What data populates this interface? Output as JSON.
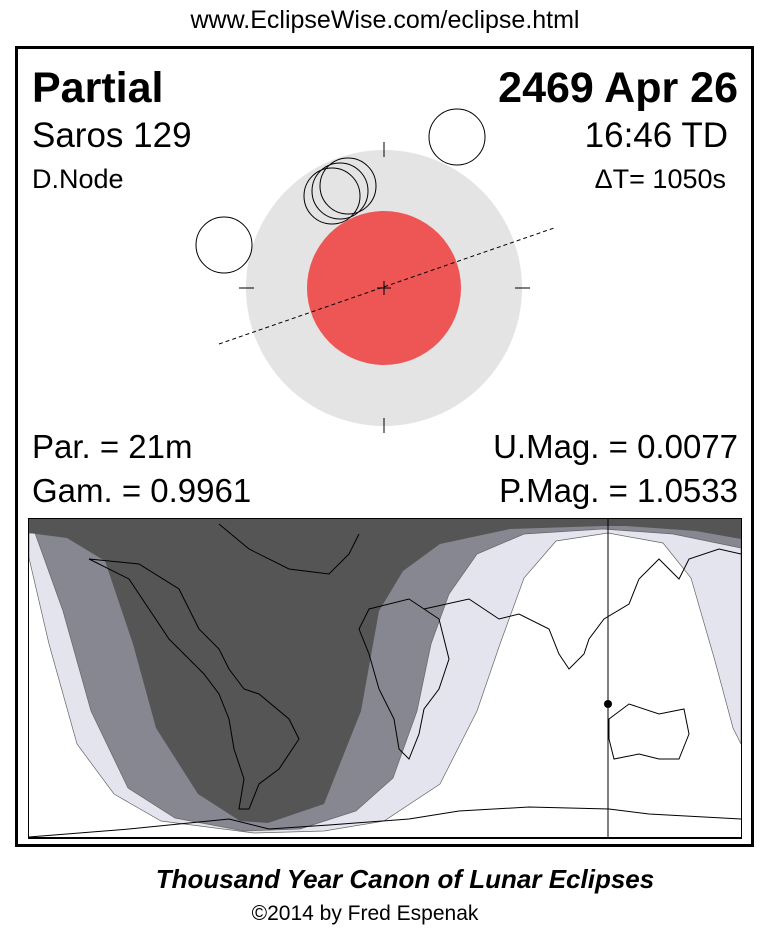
{
  "header": {
    "url": "www.EclipseWise.com/eclipse.html"
  },
  "eclipse": {
    "type": "Partial",
    "date": "2469 Apr 26",
    "saros": "Saros 129",
    "time": "16:46 TD",
    "node": "D.Node",
    "delta_t": "ΔT=   1050s",
    "partial_duration": "Par. =  21m",
    "gamma": "Gam. = 0.9961",
    "umbral_mag": "U.Mag. = 0.0077",
    "penumbral_mag": "P.Mag. = 1.0533"
  },
  "colors": {
    "penumbra": "#e4e4e4",
    "umbra": "#ee5555",
    "map_night": "#555555",
    "map_umbral_visible": "#878791",
    "map_penumbral_visible": "#e4e4ee"
  },
  "footer": {
    "title": "Thousand Year Canon of Lunar Eclipses",
    "copyright": "©2014 by Fred Espenak"
  }
}
